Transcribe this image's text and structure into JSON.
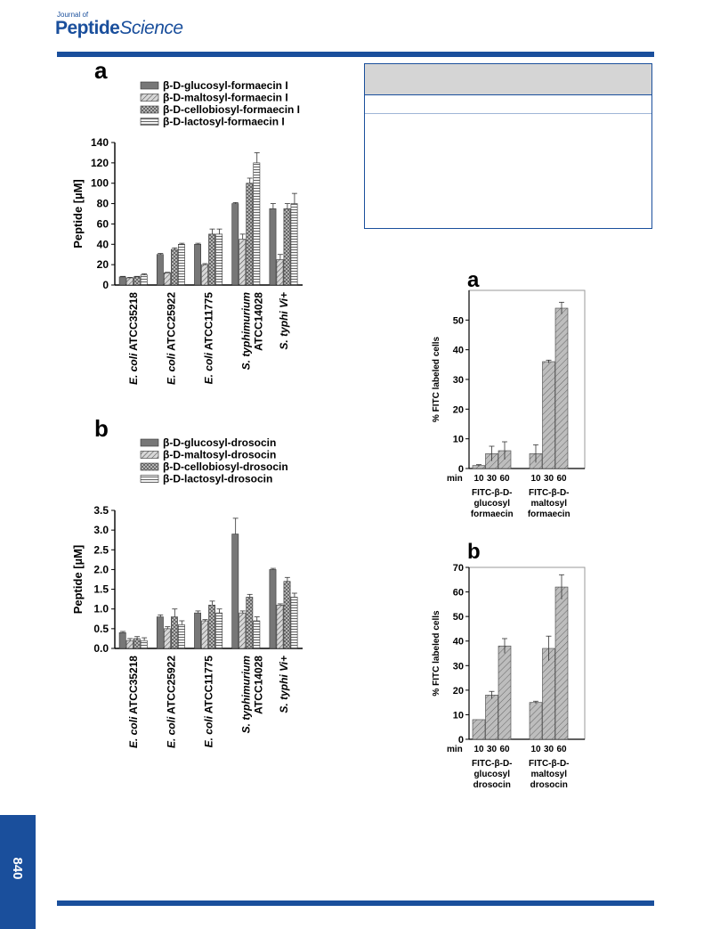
{
  "journal": {
    "prefix": "Journal of",
    "name_main": "Peptide",
    "name_italic": "Science"
  },
  "page_number": "840",
  "colors": {
    "brand": "#1a4f9c",
    "table_header": "#d5d5d5"
  },
  "chart_data": [
    {
      "id": "left-a",
      "panel_label": "a",
      "type": "bar",
      "ylabel": "Peptide [µM]",
      "ylim": [
        0,
        140
      ],
      "yticks": [
        "0",
        "20",
        "40",
        "60",
        "80",
        "100",
        "120",
        "140"
      ],
      "categories": [
        "E. coli ATCC35218",
        "E. coli ATCC25922",
        "E. coli ATCC11775",
        "S. typhimurium ATCC14028",
        "S. typhi Vi+"
      ],
      "category_labels": [
        [
          {
            "t": "E. coli",
            "i": true
          },
          {
            "t": " ATCC35218",
            "i": false
          }
        ],
        [
          {
            "t": "E. coli",
            "i": true
          },
          {
            "t": " ATCC25922",
            "i": false
          }
        ],
        [
          {
            "t": "E. coli",
            "i": true
          },
          {
            "t": " ATCC11775",
            "i": false
          }
        ],
        [
          {
            "t": "S. typhimurium",
            "i": true
          }
        ],
        [
          {
            "t": "S. typhi Vi+",
            "i": true
          }
        ]
      ],
      "category_labels_line2": [
        "",
        "",
        "",
        "ATCC14028",
        ""
      ],
      "series": [
        {
          "name": "β-D-glucosyl-formaecin I",
          "values": [
            8,
            30,
            40,
            80,
            75
          ],
          "errors": [
            0.5,
            1,
            1,
            1,
            5
          ]
        },
        {
          "name": "β-D-maltosyl-formaecin I",
          "values": [
            7,
            12,
            20,
            45,
            25
          ],
          "errors": [
            0.5,
            0.5,
            1,
            5,
            5
          ]
        },
        {
          "name": "β-D-cellobiosyl-formaecin I",
          "values": [
            8,
            35,
            50,
            100,
            75
          ],
          "errors": [
            0.5,
            1.5,
            5,
            5,
            5
          ]
        },
        {
          "name": "β-D-lactosyl-formaecin I",
          "values": [
            10,
            40,
            50,
            120,
            80
          ],
          "errors": [
            1,
            1,
            5,
            10,
            10
          ]
        }
      ]
    },
    {
      "id": "left-b",
      "panel_label": "b",
      "type": "bar",
      "ylabel": "Peptide [µM]",
      "ylim": [
        0,
        3.5
      ],
      "yticks": [
        "0.0",
        "0.5",
        "1.0",
        "1.5",
        "2.0",
        "2.5",
        "3.0",
        "3.5"
      ],
      "categories": [
        "E. coli ATCC35218",
        "E. coli ATCC25922",
        "E. coli ATCC11775",
        "S. typhimurium ATCC14028",
        "S. typhi Vi+"
      ],
      "category_labels": [
        [
          {
            "t": "E. coli",
            "i": true
          },
          {
            "t": " ATCC35218",
            "i": false
          }
        ],
        [
          {
            "t": "E. coli",
            "i": true
          },
          {
            "t": " ATCC25922",
            "i": false
          }
        ],
        [
          {
            "t": "E. coli",
            "i": true
          },
          {
            "t": " ATCC11775",
            "i": false
          }
        ],
        [
          {
            "t": "S. typhimurium",
            "i": true
          }
        ],
        [
          {
            "t": "S. typhi Vi+",
            "i": true
          }
        ]
      ],
      "category_labels_line2": [
        "",
        "",
        "",
        "ATCC14028",
        ""
      ],
      "series": [
        {
          "name": "β-D-glucosyl-drosocin",
          "values": [
            0.4,
            0.8,
            0.9,
            2.9,
            2.0
          ],
          "errors": [
            0.03,
            0.05,
            0.05,
            0.4,
            0.03
          ]
        },
        {
          "name": "β-D-maltosyl-drosocin",
          "values": [
            0.2,
            0.5,
            0.7,
            0.9,
            1.1
          ],
          "errors": [
            0.05,
            0.05,
            0.03,
            0.05,
            0.03
          ]
        },
        {
          "name": "β-D-cellobiosyl-drosocin",
          "values": [
            0.25,
            0.8,
            1.1,
            1.3,
            1.7
          ],
          "errors": [
            0.05,
            0.2,
            0.1,
            0.07,
            0.1
          ]
        },
        {
          "name": "β-D-lactosyl-drosocin",
          "values": [
            0.2,
            0.6,
            0.9,
            0.7,
            1.3
          ],
          "errors": [
            0.07,
            0.1,
            0.1,
            0.1,
            0.1
          ]
        }
      ]
    },
    {
      "id": "right-a",
      "panel_label": "a",
      "type": "bar",
      "ylabel": "%  FITC labeled cells",
      "ylim": [
        0,
        60
      ],
      "yticks": [
        "0",
        "10",
        "20",
        "30",
        "40",
        "50"
      ],
      "tick_values": [
        0,
        10,
        20,
        30,
        40,
        50
      ],
      "x_prefix": "min",
      "x_ticks": [
        "10",
        "30",
        "60",
        "10",
        "30",
        "60"
      ],
      "values": [
        1,
        5,
        6,
        5,
        36,
        54
      ],
      "errors": [
        0.3,
        2.5,
        3,
        3,
        0.5,
        2
      ],
      "groups": [
        {
          "lines": [
            "FITC-β-D-",
            "glucosyl",
            "formaecin"
          ]
        },
        {
          "lines": [
            "FITC-β-D-",
            "maltosyl",
            "formaecin"
          ]
        }
      ]
    },
    {
      "id": "right-b",
      "panel_label": "b",
      "type": "bar",
      "ylabel": "% FITC labeled cells",
      "ylim": [
        0,
        70
      ],
      "yticks": [
        "0",
        "10",
        "20",
        "30",
        "40",
        "50",
        "60",
        "70"
      ],
      "tick_values": [
        0,
        10,
        20,
        30,
        40,
        50,
        60,
        70
      ],
      "x_prefix": "min",
      "x_ticks": [
        "10",
        "30",
        "60",
        "10",
        "30",
        "60"
      ],
      "values": [
        8,
        18,
        38,
        15,
        37,
        62
      ],
      "errors": [
        0,
        1.5,
        3,
        0.5,
        5,
        5
      ],
      "groups": [
        {
          "lines": [
            "FITC-β-D-",
            "glucosyl",
            "drosocin"
          ]
        },
        {
          "lines": [
            "FITC-β-D-",
            "maltosyl",
            "drosocin"
          ]
        }
      ]
    }
  ]
}
